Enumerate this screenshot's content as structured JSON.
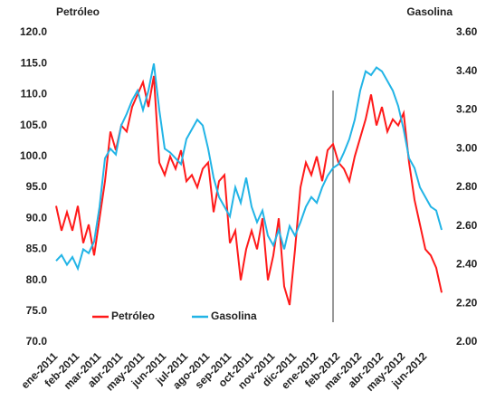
{
  "chart_data": {
    "type": "line",
    "y_label": "Petróleo",
    "y2_label": "Gasolina",
    "x": [
      0,
      0.25,
      0.5,
      0.75,
      1,
      1.25,
      1.5,
      1.75,
      2,
      2.25,
      2.5,
      2.75,
      3,
      3.25,
      3.5,
      3.75,
      4,
      4.25,
      4.5,
      4.75,
      5,
      5.25,
      5.5,
      5.75,
      6,
      6.25,
      6.5,
      6.75,
      7,
      7.25,
      7.5,
      7.75,
      8,
      8.25,
      8.5,
      8.75,
      9,
      9.25,
      9.5,
      9.75,
      10,
      10.25,
      10.5,
      10.75,
      11,
      11.25,
      11.5,
      11.75,
      12,
      12.25,
      12.5,
      12.75,
      13,
      13.25,
      13.5,
      13.75,
      14,
      14.25,
      14.5,
      14.75,
      15,
      15.25,
      15.5,
      15.75,
      16,
      16.25,
      16.5,
      16.75,
      17,
      17.25,
      17.5,
      17.75
    ],
    "xlim": [
      0,
      17.75
    ],
    "xticks": [
      {
        "value": 0,
        "label": "ene-2011"
      },
      {
        "value": 1,
        "label": "feb-2011"
      },
      {
        "value": 2,
        "label": "mar-2011"
      },
      {
        "value": 3,
        "label": "abr-2011"
      },
      {
        "value": 4,
        "label": "may-2011"
      },
      {
        "value": 5,
        "label": "jun-2011"
      },
      {
        "value": 6,
        "label": "jul-2011"
      },
      {
        "value": 7,
        "label": "ago-2011"
      },
      {
        "value": 8,
        "label": "sep-2011"
      },
      {
        "value": 9,
        "label": "oct-2011"
      },
      {
        "value": 10,
        "label": "nov-2011"
      },
      {
        "value": 11,
        "label": "dic-2011"
      },
      {
        "value": 12,
        "label": "ene-2012"
      },
      {
        "value": 13,
        "label": "feb-2012"
      },
      {
        "value": 14,
        "label": "mar-2012"
      },
      {
        "value": 15,
        "label": "abr-2012"
      },
      {
        "value": 16,
        "label": "may-2012"
      },
      {
        "value": 17,
        "label": "jun-2012"
      }
    ],
    "ylim": [
      70,
      120
    ],
    "yticks": [
      {
        "value": 70,
        "label": "70.0"
      },
      {
        "value": 75,
        "label": "75.0"
      },
      {
        "value": 80,
        "label": "80.0"
      },
      {
        "value": 85,
        "label": "85.0"
      },
      {
        "value": 90,
        "label": "90.0"
      },
      {
        "value": 95,
        "label": "95.0"
      },
      {
        "value": 100,
        "label": "100.0"
      },
      {
        "value": 105,
        "label": "105.0"
      },
      {
        "value": 110,
        "label": "110.0"
      },
      {
        "value": 115,
        "label": "115.0"
      },
      {
        "value": 120,
        "label": "120.0"
      }
    ],
    "y2lim": [
      2.0,
      3.6
    ],
    "y2ticks": [
      {
        "value": 2.0,
        "label": "2.00"
      },
      {
        "value": 2.2,
        "label": "2.20"
      },
      {
        "value": 2.4,
        "label": "2.40"
      },
      {
        "value": 2.6,
        "label": "2.60"
      },
      {
        "value": 2.8,
        "label": "2.80"
      },
      {
        "value": 3.0,
        "label": "3.00"
      },
      {
        "value": 3.2,
        "label": "3.20"
      },
      {
        "value": 3.4,
        "label": "3.40"
      },
      {
        "value": 3.6,
        "label": "3.60"
      }
    ],
    "legend": "lower left",
    "series": [
      {
        "name": "Petróleo",
        "color": "#ff1a1a",
        "values": [
          92,
          88,
          91,
          88,
          92,
          86,
          89,
          84,
          90,
          96,
          104,
          101,
          105,
          104,
          108,
          110,
          112,
          108,
          113,
          99,
          97,
          100,
          98,
          101,
          96,
          97,
          95,
          98,
          99,
          91,
          96,
          97,
          86,
          88,
          80,
          85,
          88,
          85,
          90,
          80,
          84,
          90,
          79,
          76,
          85,
          95,
          99,
          97,
          100,
          96,
          101,
          102,
          99,
          98,
          96,
          100,
          103,
          106,
          110,
          105,
          108,
          104,
          106,
          105,
          107,
          99,
          93,
          89,
          85,
          84,
          82,
          78
        ]
      },
      {
        "name": "Gasolina",
        "color": "#22b4e6",
        "axis": "y2",
        "values": [
          2.42,
          2.45,
          2.4,
          2.44,
          2.38,
          2.48,
          2.46,
          2.52,
          2.7,
          2.95,
          3.0,
          2.97,
          3.12,
          3.18,
          3.25,
          3.3,
          3.2,
          3.3,
          3.44,
          3.2,
          3.0,
          2.98,
          2.95,
          2.92,
          3.05,
          3.1,
          3.15,
          3.12,
          3.0,
          2.85,
          2.75,
          2.7,
          2.65,
          2.8,
          2.72,
          2.85,
          2.7,
          2.62,
          2.68,
          2.55,
          2.5,
          2.58,
          2.48,
          2.6,
          2.55,
          2.62,
          2.7,
          2.75,
          2.72,
          2.8,
          2.86,
          2.9,
          2.92,
          2.98,
          3.05,
          3.15,
          3.3,
          3.4,
          3.38,
          3.42,
          3.4,
          3.35,
          3.3,
          3.22,
          3.1,
          2.95,
          2.9,
          2.8,
          2.75,
          2.7,
          2.68,
          2.58
        ]
      }
    ]
  }
}
